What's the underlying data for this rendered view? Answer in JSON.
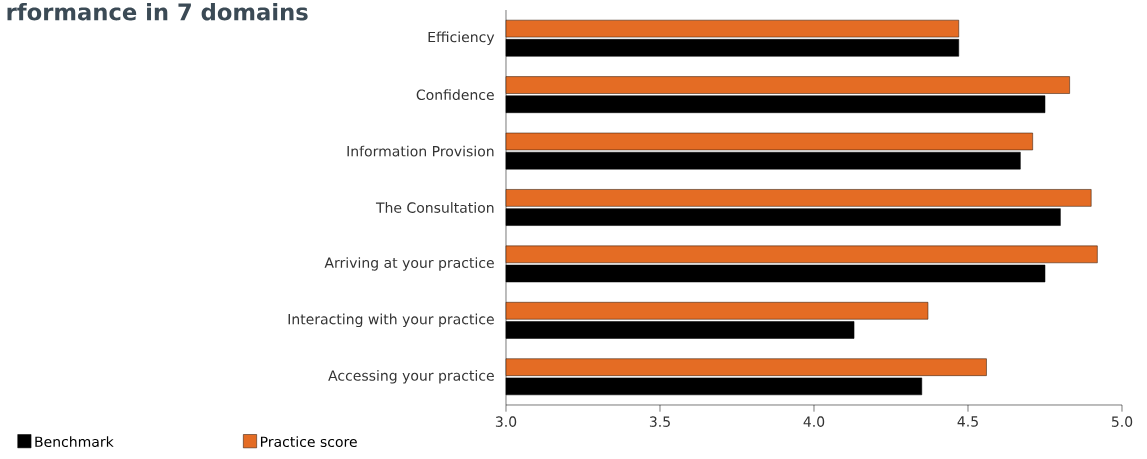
{
  "chart_data": {
    "type": "bar",
    "orientation": "horizontal",
    "title": "rformance in 7 domains",
    "categories": [
      "Efficiency",
      "Confidence",
      "Information Provision",
      "The Consultation",
      "Arriving at your practice",
      "Interacting with your practice",
      "Accessing your practice"
    ],
    "series": [
      {
        "name": "Benchmark",
        "color": "#000000",
        "values": [
          4.47,
          4.75,
          4.67,
          4.8,
          4.75,
          4.13,
          4.35
        ]
      },
      {
        "name": "Practice score",
        "color": "#e46c24",
        "values": [
          4.47,
          4.83,
          4.71,
          4.9,
          4.92,
          4.37,
          4.56
        ]
      }
    ],
    "xlim": [
      3.0,
      5.0
    ],
    "xticks": [
      {
        "value": 3.0,
        "label": "3.0"
      },
      3.5,
      {
        "value": 4.0,
        "label": "4.0"
      },
      4.5,
      {
        "value": 5.0,
        "label": "5.0"
      }
    ],
    "legend": "bottom"
  }
}
